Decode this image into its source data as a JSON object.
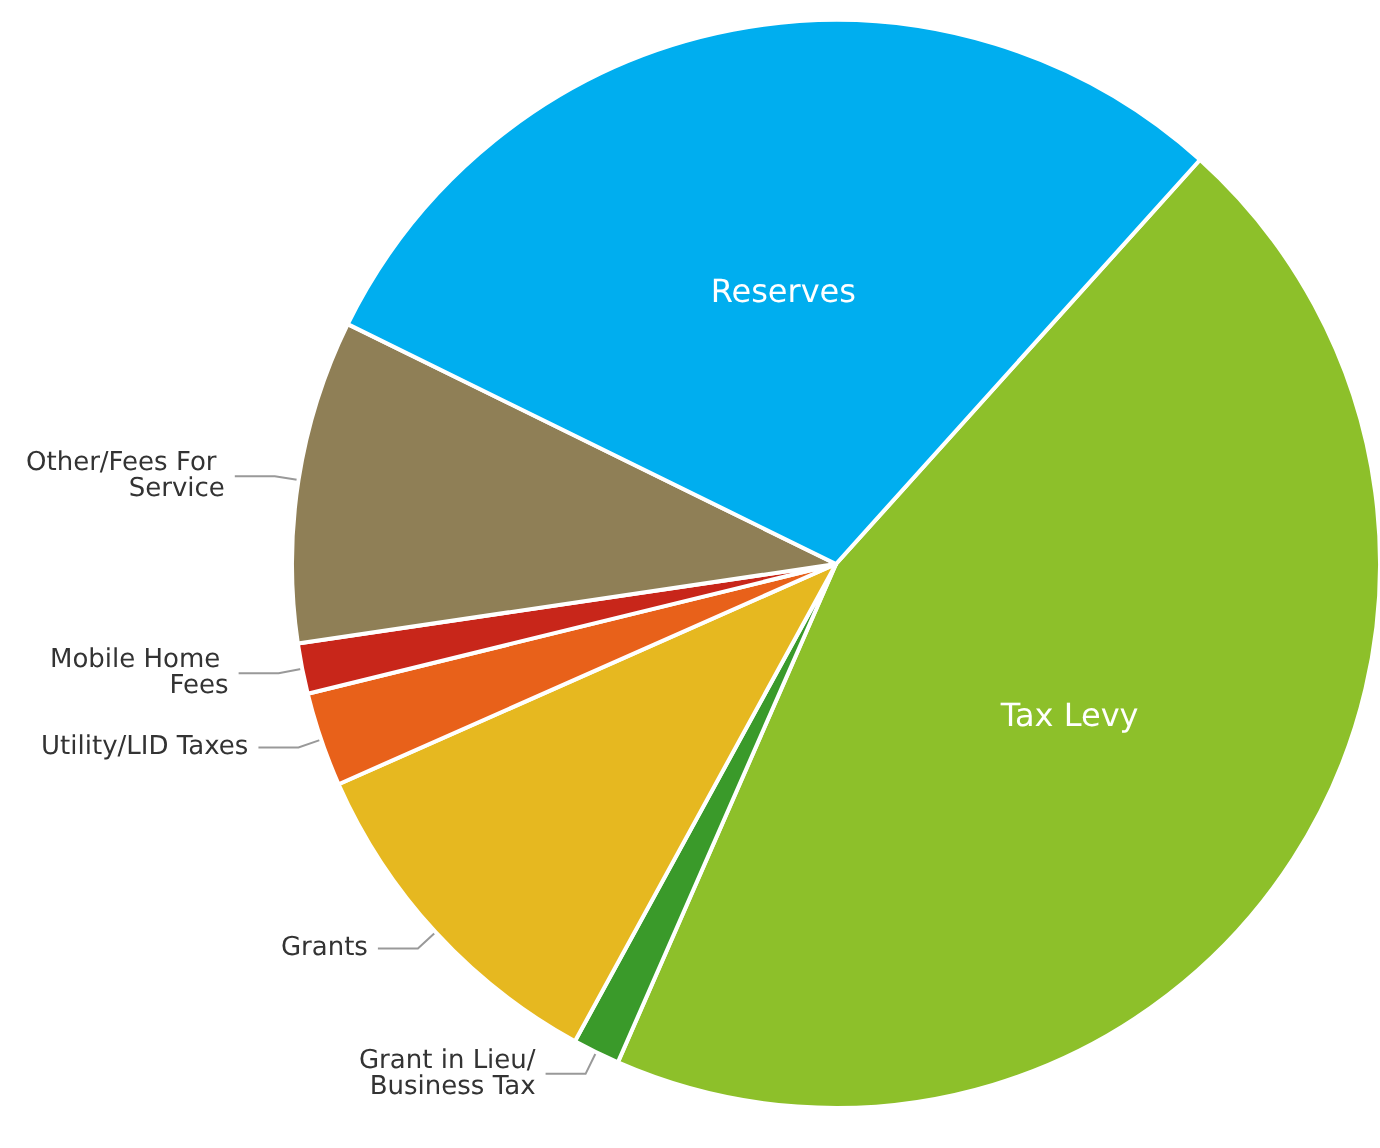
{
  "chart_data": {
    "type": "pie",
    "categories": [
      "Tax Levy",
      "Grant in Lieu/Business Tax",
      "Grants",
      "Utility/LID Taxes",
      "Mobile Home Fees",
      "Other/Fees For Service",
      "Reserves"
    ],
    "values": [
      44.9,
      1.4,
      10.4,
      2.8,
      1.5,
      9.6,
      29.4
    ],
    "colors": [
      "#8dc02a",
      "#3a9a2a",
      "#e6b820",
      "#e8611a",
      "#c8261a",
      "#8f7f56",
      "#00aeef"
    ],
    "legend": false
  }
}
